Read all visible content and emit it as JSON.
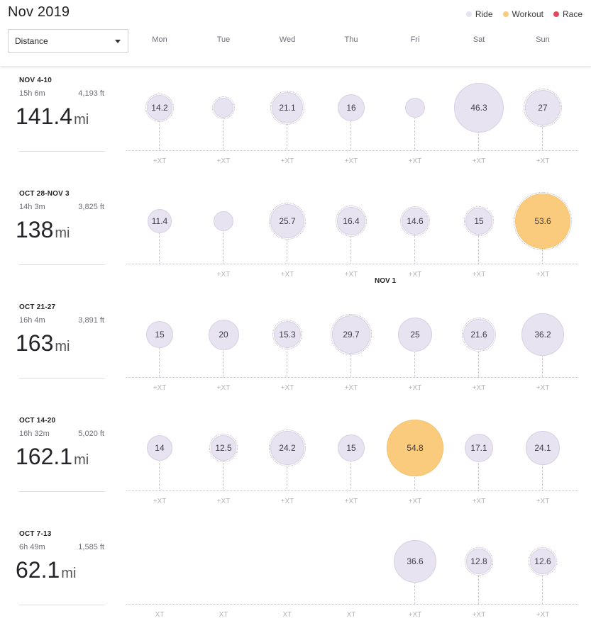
{
  "header": {
    "title": "Nov 2019",
    "metric": "Distance",
    "legend": [
      {
        "label": "Ride",
        "color": "#e8e3f1"
      },
      {
        "label": "Workout",
        "color": "#fbcb7d"
      },
      {
        "label": "Race",
        "color": "#e2495b"
      }
    ],
    "days": [
      "Mon",
      "Tue",
      "Wed",
      "Thu",
      "Fri",
      "Sat",
      "Sun"
    ]
  },
  "weeks": [
    {
      "range": "NOV 4-10",
      "time": "15h 6m",
      "elevation": "4,193 ft",
      "distance": "141.4",
      "unit": "mi",
      "days": [
        {
          "value": "14.2",
          "kind": "ride",
          "multi": true,
          "xt": "+XT"
        },
        {
          "value": "",
          "kind": "ride",
          "multi": true,
          "xt": "+XT"
        },
        {
          "value": "21.1",
          "kind": "ride",
          "multi": true,
          "xt": "+XT"
        },
        {
          "value": "16",
          "kind": "ride",
          "multi": false,
          "xt": "+XT"
        },
        {
          "value": "",
          "kind": "ride",
          "multi": false,
          "xt": "+XT"
        },
        {
          "value": "46.3",
          "kind": "ride",
          "multi": false,
          "xt": "+XT"
        },
        {
          "value": "27",
          "kind": "ride",
          "multi": true,
          "xt": "+XT"
        }
      ]
    },
    {
      "range": "OCT 28-NOV 3",
      "time": "14h 3m",
      "elevation": "3,825 ft",
      "distance": "138",
      "unit": "mi",
      "marker": "NOV 1",
      "days": [
        {
          "value": "11.4",
          "kind": "ride",
          "multi": false,
          "xt": ""
        },
        {
          "value": "",
          "kind": "ride",
          "multi": false,
          "xt": "+XT"
        },
        {
          "value": "25.7",
          "kind": "ride",
          "multi": true,
          "xt": "+XT"
        },
        {
          "value": "16.4",
          "kind": "ride",
          "multi": true,
          "xt": "+XT"
        },
        {
          "value": "14.6",
          "kind": "ride",
          "multi": true,
          "xt": "+XT"
        },
        {
          "value": "15",
          "kind": "ride",
          "multi": true,
          "xt": "+XT"
        },
        {
          "value": "53.6",
          "kind": "workout",
          "multi": true,
          "xt": "+XT"
        }
      ]
    },
    {
      "range": "OCT 21-27",
      "time": "16h 4m",
      "elevation": "3,891 ft",
      "distance": "163",
      "unit": "mi",
      "days": [
        {
          "value": "15",
          "kind": "ride",
          "multi": false,
          "xt": "+XT"
        },
        {
          "value": "20",
          "kind": "ride",
          "multi": false,
          "xt": "+XT"
        },
        {
          "value": "15.3",
          "kind": "ride",
          "multi": true,
          "xt": "+XT"
        },
        {
          "value": "29.7",
          "kind": "ride",
          "multi": true,
          "xt": "+XT"
        },
        {
          "value": "25",
          "kind": "ride",
          "multi": false,
          "xt": "+XT"
        },
        {
          "value": "21.6",
          "kind": "ride",
          "multi": true,
          "xt": "+XT"
        },
        {
          "value": "36.2",
          "kind": "ride",
          "multi": false,
          "xt": "+XT"
        }
      ]
    },
    {
      "range": "OCT 14-20",
      "time": "16h 32m",
      "elevation": "5,020 ft",
      "distance": "162.1",
      "unit": "mi",
      "days": [
        {
          "value": "14",
          "kind": "ride",
          "multi": false,
          "xt": "+XT"
        },
        {
          "value": "12.5",
          "kind": "ride",
          "multi": true,
          "xt": "+XT"
        },
        {
          "value": "24.2",
          "kind": "ride",
          "multi": true,
          "xt": "+XT"
        },
        {
          "value": "15",
          "kind": "ride",
          "multi": false,
          "xt": "+XT"
        },
        {
          "value": "54.8",
          "kind": "workout",
          "multi": false,
          "xt": "+XT"
        },
        {
          "value": "17.1",
          "kind": "ride",
          "multi": false,
          "xt": "+XT"
        },
        {
          "value": "24.1",
          "kind": "ride",
          "multi": false,
          "xt": "+XT"
        }
      ]
    },
    {
      "range": "OCT 7-13",
      "time": "6h 49m",
      "elevation": "1,585 ft",
      "distance": "62.1",
      "unit": "mi",
      "days": [
        {
          "value": null,
          "kind": "none",
          "multi": false,
          "xt": "XT"
        },
        {
          "value": null,
          "kind": "none",
          "multi": false,
          "xt": "XT"
        },
        {
          "value": null,
          "kind": "none",
          "multi": false,
          "xt": "XT"
        },
        {
          "value": null,
          "kind": "none",
          "multi": false,
          "xt": "XT"
        },
        {
          "value": "36.6",
          "kind": "ride",
          "multi": false,
          "xt": "+XT"
        },
        {
          "value": "12.8",
          "kind": "ride",
          "multi": true,
          "xt": "+XT"
        },
        {
          "value": "12.6",
          "kind": "ride",
          "multi": true,
          "xt": "+XT"
        }
      ]
    }
  ]
}
